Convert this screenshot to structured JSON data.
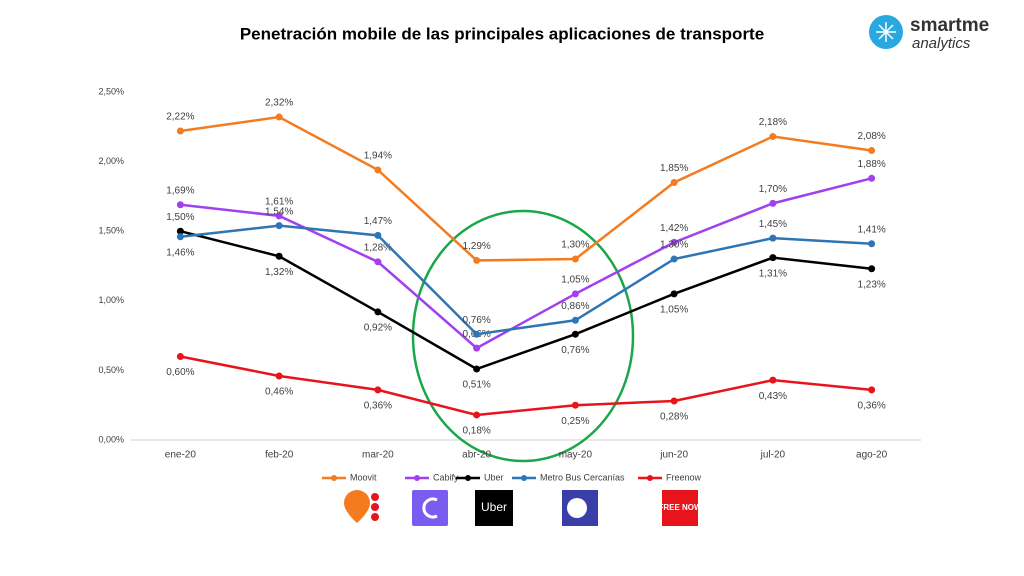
{
  "chart_data": {
    "type": "line",
    "title": "Penetración mobile de las principales aplicaciones de transporte",
    "categories": [
      "ene-20",
      "feb-20",
      "mar-20",
      "abr-20",
      "may-20",
      "jun-20",
      "jul-20",
      "ago-20"
    ],
    "series": [
      {
        "name": "Moovit",
        "color": "#f47b20",
        "values": [
          2.22,
          2.32,
          1.94,
          1.29,
          1.3,
          1.85,
          2.18,
          2.08
        ],
        "value_labels": [
          "2,22%",
          "2,32%",
          "1,94%",
          "1,29%",
          "1,30%",
          "1,85%",
          "2,18%",
          "2,08%"
        ]
      },
      {
        "name": "Cabify",
        "color": "#a040f0",
        "values": [
          1.69,
          1.61,
          1.28,
          0.66,
          1.05,
          1.42,
          1.7,
          1.88
        ],
        "value_labels": [
          "1,69%",
          "1,61%",
          "1,28%",
          "0,66%",
          "1,05%",
          "1,42%",
          "1,70%",
          "1,88%"
        ]
      },
      {
        "name": "Uber",
        "color": "#000000",
        "values": [
          1.5,
          1.32,
          0.92,
          0.51,
          0.76,
          1.05,
          1.31,
          1.23
        ],
        "value_labels": [
          "1,50%",
          "1,32%",
          "0,92%",
          "0,51%",
          "0,76%",
          "1,05%",
          "1,31%",
          "1,23%"
        ]
      },
      {
        "name": "Metro Bus Cercanías",
        "color": "#2e75b6",
        "values": [
          1.46,
          1.54,
          1.47,
          0.76,
          0.86,
          1.3,
          1.45,
          1.41
        ],
        "value_labels": [
          "1,46%",
          "1,54%",
          "1,47%",
          "0,76%",
          "0,86%",
          "1,30%",
          "1,45%",
          "1,41%"
        ]
      },
      {
        "name": "Freenow",
        "color": "#e8141c",
        "values": [
          0.6,
          0.46,
          0.36,
          0.18,
          0.25,
          0.28,
          0.43,
          0.36
        ],
        "value_labels": [
          "0,60%",
          "0,46%",
          "0,36%",
          "0,18%",
          "0,25%",
          "0,28%",
          "0,43%",
          "0,36%"
        ]
      }
    ],
    "ylim": [
      0,
      2.5
    ],
    "yticks": [
      {
        "value": 0,
        "label": "0,00%"
      },
      {
        "value": 0.5,
        "label": "0,50%"
      },
      {
        "value": 1,
        "label": "1,00%"
      },
      {
        "value": 1.5,
        "label": "1,50%"
      },
      {
        "value": 2,
        "label": "2,00%"
      },
      {
        "value": 2.5,
        "label": "2,50%"
      }
    ],
    "grid": false,
    "legend": "bottom"
  },
  "brand": {
    "name": "smartme",
    "tagline": "analytics"
  },
  "app_logos": {
    "uber": "Uber",
    "freenow": "FREE NOW"
  }
}
